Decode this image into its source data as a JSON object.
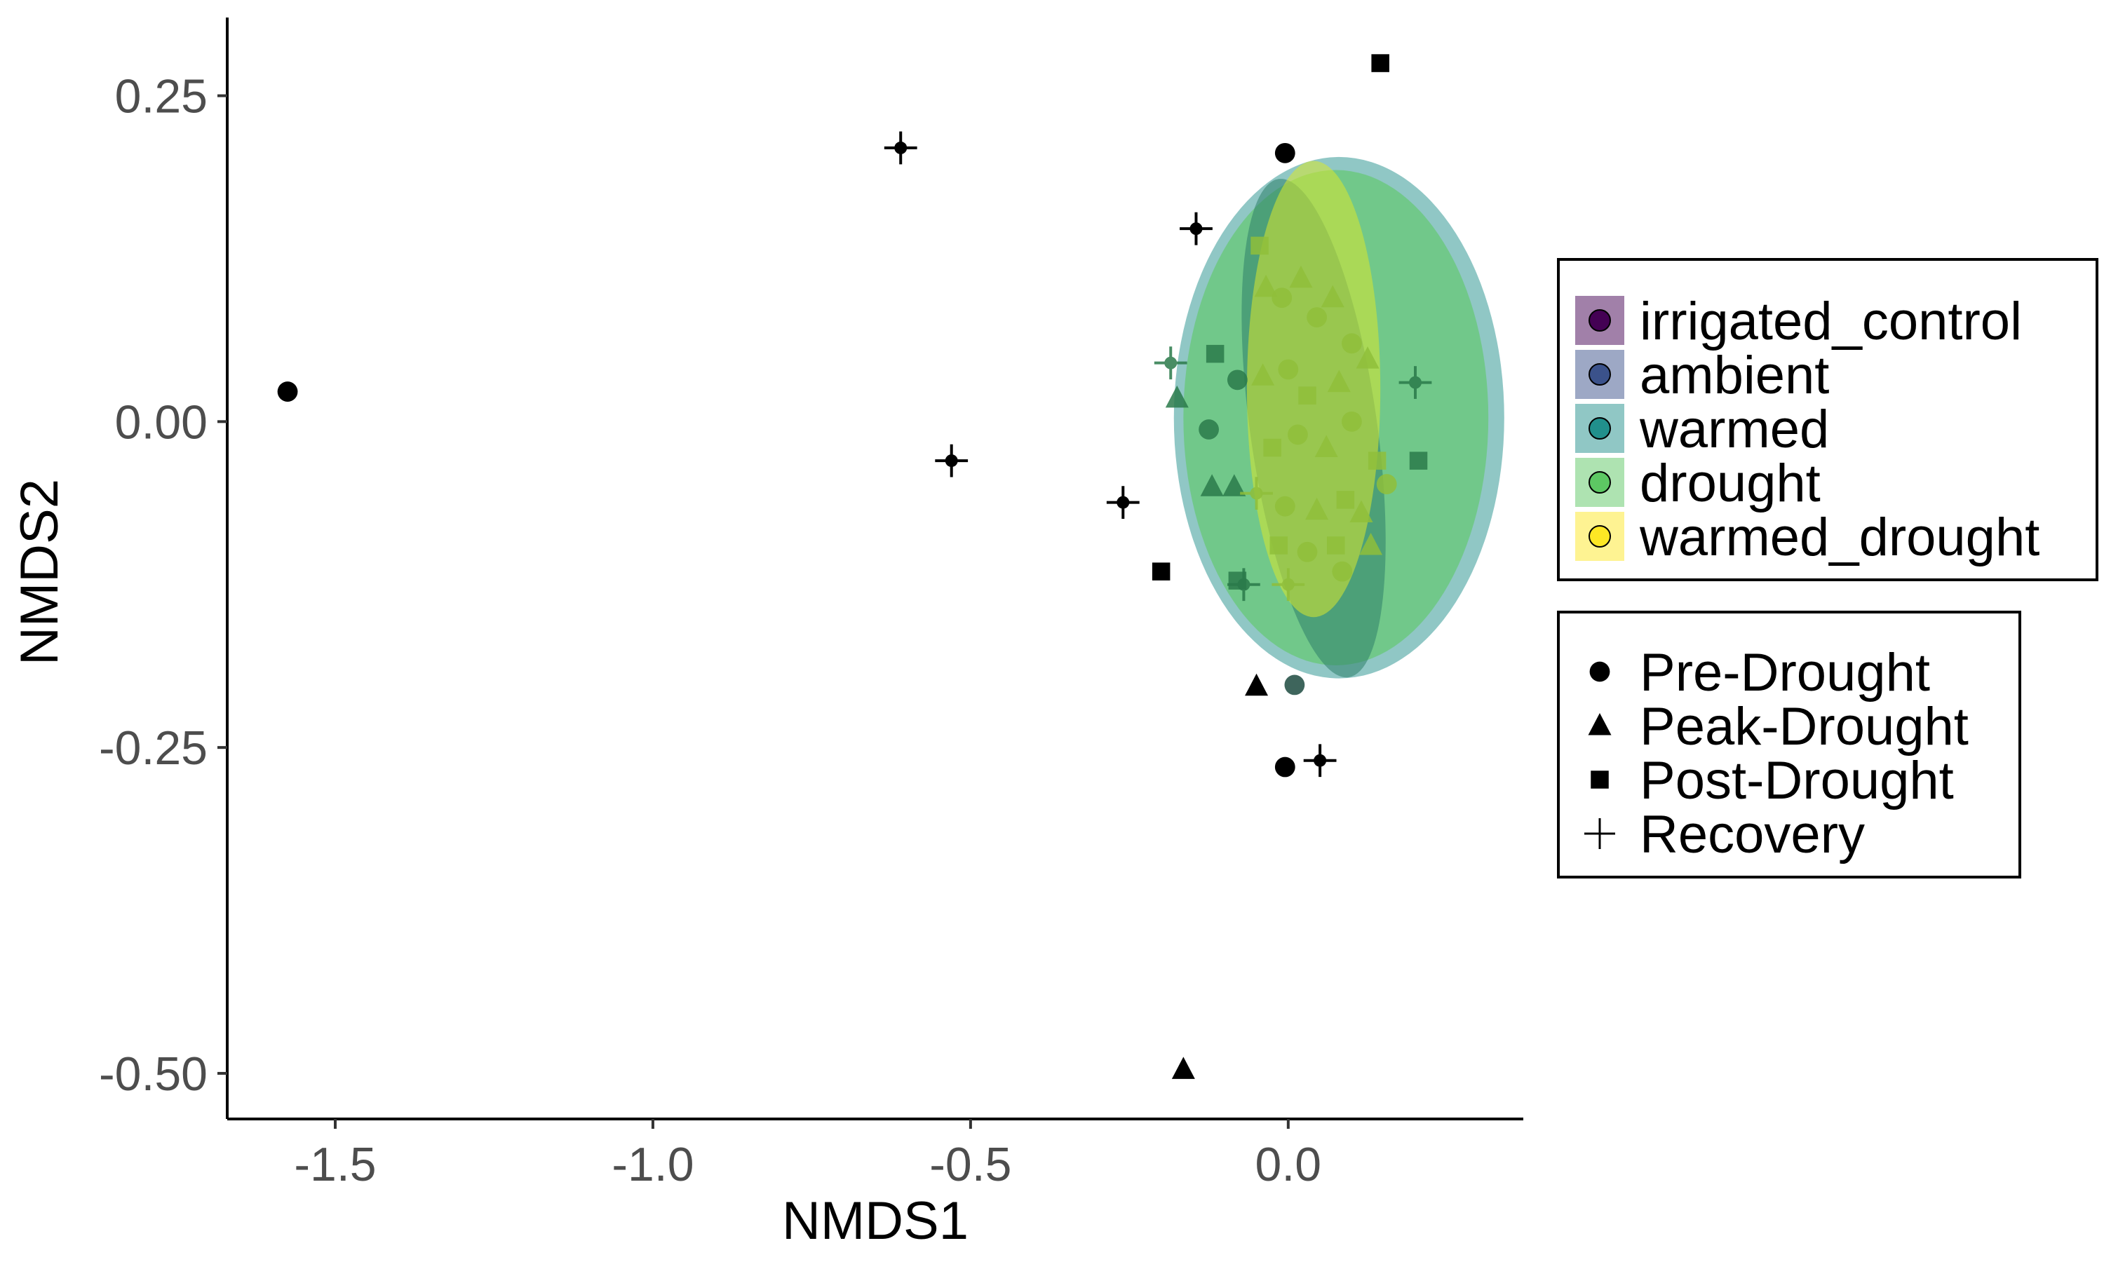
{
  "chart_data": {
    "type": "scatter",
    "title": "",
    "xlabel": "NMDS1",
    "ylabel": "NMDS2",
    "xlim": [
      -1.67,
      0.37
    ],
    "ylim": [
      -0.535,
      0.31
    ],
    "x_ticks": [
      {
        "value": -1.5,
        "label": "-1.5"
      },
      {
        "value": -1.0,
        "label": "-1.0"
      },
      {
        "value": -0.5,
        "label": "-0.5"
      },
      {
        "value": 0.0,
        "label": "0.0"
      }
    ],
    "y_ticks": [
      {
        "value": 0.25,
        "label": "0.25"
      },
      {
        "value": 0.0,
        "label": "0.00"
      },
      {
        "value": -0.25,
        "label": "-0.25"
      },
      {
        "value": -0.5,
        "label": "-0.50"
      }
    ],
    "grid": false,
    "legend_placement": "right",
    "treatments": [
      {
        "name": "irrigated_control",
        "color": "#440154"
      },
      {
        "name": "ambient",
        "color": "#3b528b"
      },
      {
        "name": "warmed",
        "color": "#21908c"
      },
      {
        "name": "drought",
        "color": "#5dc863"
      },
      {
        "name": "warmed_drought",
        "color": "#fde725"
      }
    ],
    "timepoints": [
      {
        "name": "Pre-Drought",
        "shape": "circle"
      },
      {
        "name": "Peak-Drought",
        "shape": "triangle"
      },
      {
        "name": "Post-Drought",
        "shape": "square"
      },
      {
        "name": "Recovery",
        "shape": "plus"
      }
    ],
    "ellipses": [
      {
        "treatment": "warmed",
        "cx": 0.08,
        "cy": 0.003,
        "rx": 0.26,
        "ry": 0.2,
        "rotate": 0,
        "fill": "#21908c",
        "opacity": 0.5
      },
      {
        "treatment": "drought",
        "cx": 0.075,
        "cy": 0.003,
        "rx": 0.24,
        "ry": 0.19,
        "rotate": 0,
        "fill": "#5dc863",
        "opacity": 0.6
      },
      {
        "treatment": "ambient",
        "cx": 0.04,
        "cy": -0.005,
        "rx": 0.1,
        "ry": 0.193,
        "rotate": -8,
        "fill": "#2e7f6a",
        "opacity": 0.55
      },
      {
        "treatment": "warmed_drought",
        "cx": 0.04,
        "cy": 0.025,
        "rx": 0.105,
        "ry": 0.175,
        "rotate": 0,
        "fill": "#d8e82e",
        "opacity": 0.55
      }
    ],
    "points": [
      {
        "x": -1.575,
        "y": 0.023,
        "shape": "circle",
        "color": "#000000"
      },
      {
        "x": -0.61,
        "y": 0.21,
        "shape": "plus",
        "color": "#000000"
      },
      {
        "x": -0.53,
        "y": -0.03,
        "shape": "plus",
        "color": "#000000"
      },
      {
        "x": -0.26,
        "y": -0.062,
        "shape": "plus",
        "color": "#000000"
      },
      {
        "x": -0.145,
        "y": 0.148,
        "shape": "plus",
        "color": "#000000"
      },
      {
        "x": -0.005,
        "y": 0.206,
        "shape": "circle",
        "color": "#000000"
      },
      {
        "x": 0.145,
        "y": 0.275,
        "shape": "square",
        "color": "#000000"
      },
      {
        "x": -0.2,
        "y": -0.115,
        "shape": "square",
        "color": "#000000"
      },
      {
        "x": -0.05,
        "y": -0.203,
        "shape": "triangle",
        "color": "#000000"
      },
      {
        "x": 0.01,
        "y": -0.202,
        "shape": "circle",
        "color": "#1c4a40"
      },
      {
        "x": -0.005,
        "y": -0.265,
        "shape": "circle",
        "color": "#000000"
      },
      {
        "x": 0.05,
        "y": -0.26,
        "shape": "plus",
        "color": "#000000"
      },
      {
        "x": -0.165,
        "y": -0.497,
        "shape": "triangle",
        "color": "#000000"
      },
      {
        "x": -0.185,
        "y": 0.045,
        "shape": "plus",
        "color": "#2a7a4a"
      },
      {
        "x": -0.175,
        "y": 0.018,
        "shape": "triangle",
        "color": "#2a7a4a"
      },
      {
        "x": -0.115,
        "y": 0.052,
        "shape": "square",
        "color": "#2a7a4a"
      },
      {
        "x": -0.125,
        "y": -0.006,
        "shape": "circle",
        "color": "#2a7a4a"
      },
      {
        "x": -0.12,
        "y": -0.05,
        "shape": "triangle",
        "color": "#2a7a4a"
      },
      {
        "x": -0.085,
        "y": -0.05,
        "shape": "triangle",
        "color": "#2a7a4a"
      },
      {
        "x": -0.08,
        "y": -0.122,
        "shape": "square",
        "color": "#2a7a4a"
      },
      {
        "x": -0.07,
        "y": -0.125,
        "shape": "plus",
        "color": "#2a7a4a"
      },
      {
        "x": 0.2,
        "y": 0.03,
        "shape": "plus",
        "color": "#2a7a4a"
      },
      {
        "x": 0.205,
        "y": -0.03,
        "shape": "square",
        "color": "#2a7a4a"
      },
      {
        "x": -0.08,
        "y": 0.032,
        "shape": "circle",
        "color": "#2a7a4a"
      },
      {
        "x": -0.045,
        "y": 0.135,
        "shape": "square",
        "color": "#8fbe3a"
      },
      {
        "x": -0.035,
        "y": 0.103,
        "shape": "triangle",
        "color": "#8fbe3a"
      },
      {
        "x": -0.01,
        "y": 0.095,
        "shape": "circle",
        "color": "#8fbe3a"
      },
      {
        "x": 0.02,
        "y": 0.11,
        "shape": "triangle",
        "color": "#8fbe3a"
      },
      {
        "x": 0.045,
        "y": 0.08,
        "shape": "circle",
        "color": "#8fbe3a"
      },
      {
        "x": 0.07,
        "y": 0.095,
        "shape": "triangle",
        "color": "#8fbe3a"
      },
      {
        "x": 0.1,
        "y": 0.06,
        "shape": "circle",
        "color": "#8fbe3a"
      },
      {
        "x": 0.125,
        "y": 0.048,
        "shape": "triangle",
        "color": "#8fbe3a"
      },
      {
        "x": -0.04,
        "y": 0.035,
        "shape": "triangle",
        "color": "#8fbe3a"
      },
      {
        "x": 0.0,
        "y": 0.04,
        "shape": "circle",
        "color": "#8fbe3a"
      },
      {
        "x": 0.03,
        "y": 0.02,
        "shape": "square",
        "color": "#8fbe3a"
      },
      {
        "x": 0.08,
        "y": 0.03,
        "shape": "triangle",
        "color": "#8fbe3a"
      },
      {
        "x": -0.025,
        "y": -0.02,
        "shape": "square",
        "color": "#8fbe3a"
      },
      {
        "x": 0.015,
        "y": -0.01,
        "shape": "circle",
        "color": "#8fbe3a"
      },
      {
        "x": 0.06,
        "y": -0.02,
        "shape": "triangle",
        "color": "#8fbe3a"
      },
      {
        "x": 0.1,
        "y": 0.0,
        "shape": "circle",
        "color": "#8fbe3a"
      },
      {
        "x": 0.14,
        "y": -0.03,
        "shape": "square",
        "color": "#8fbe3a"
      },
      {
        "x": 0.155,
        "y": -0.048,
        "shape": "circle",
        "color": "#8fbe3a"
      },
      {
        "x": -0.05,
        "y": -0.055,
        "shape": "plus",
        "color": "#8fbe3a"
      },
      {
        "x": -0.005,
        "y": -0.065,
        "shape": "circle",
        "color": "#8fbe3a"
      },
      {
        "x": 0.045,
        "y": -0.068,
        "shape": "triangle",
        "color": "#8fbe3a"
      },
      {
        "x": 0.09,
        "y": -0.06,
        "shape": "square",
        "color": "#8fbe3a"
      },
      {
        "x": 0.115,
        "y": -0.07,
        "shape": "triangle",
        "color": "#8fbe3a"
      },
      {
        "x": -0.015,
        "y": -0.095,
        "shape": "square",
        "color": "#8fbe3a"
      },
      {
        "x": 0.03,
        "y": -0.1,
        "shape": "circle",
        "color": "#8fbe3a"
      },
      {
        "x": 0.075,
        "y": -0.095,
        "shape": "square",
        "color": "#8fbe3a"
      },
      {
        "x": 0.13,
        "y": -0.095,
        "shape": "triangle",
        "color": "#8fbe3a"
      },
      {
        "x": 0.085,
        "y": -0.115,
        "shape": "circle",
        "color": "#8fbe3a"
      },
      {
        "x": 0.0,
        "y": -0.125,
        "shape": "plus",
        "color": "#8fbe3a"
      }
    ]
  }
}
